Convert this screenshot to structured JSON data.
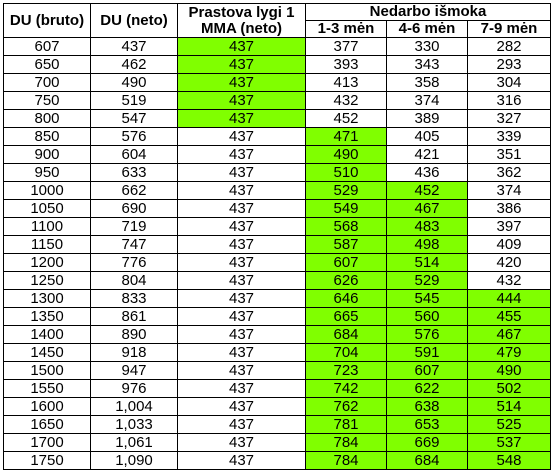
{
  "headers": {
    "du_bruto": "DU (bruto)",
    "du_neto": "DU (neto)",
    "prastova": "Prastova lygi 1 MMA (neto)",
    "nedarbo": "Nedarbo išmoka",
    "m13": "1-3 mėn",
    "m46": "4-6 mėn",
    "m79": "7-9 mėn"
  },
  "highlight_color": "#80ff00",
  "rows": [
    {
      "bruto": "607",
      "neto": "437",
      "prastova": "437",
      "m13": "377",
      "m46": "330",
      "m79": "282",
      "hl": [
        0,
        0,
        1,
        0,
        0,
        0
      ]
    },
    {
      "bruto": "650",
      "neto": "462",
      "prastova": "437",
      "m13": "393",
      "m46": "343",
      "m79": "293",
      "hl": [
        0,
        0,
        1,
        0,
        0,
        0
      ]
    },
    {
      "bruto": "700",
      "neto": "490",
      "prastova": "437",
      "m13": "413",
      "m46": "358",
      "m79": "304",
      "hl": [
        0,
        0,
        1,
        0,
        0,
        0
      ]
    },
    {
      "bruto": "750",
      "neto": "519",
      "prastova": "437",
      "m13": "432",
      "m46": "374",
      "m79": "316",
      "hl": [
        0,
        0,
        1,
        0,
        0,
        0
      ]
    },
    {
      "bruto": "800",
      "neto": "547",
      "prastova": "437",
      "m13": "452",
      "m46": "389",
      "m79": "327",
      "hl": [
        0,
        0,
        1,
        0,
        0,
        0
      ]
    },
    {
      "bruto": "850",
      "neto": "576",
      "prastova": "437",
      "m13": "471",
      "m46": "405",
      "m79": "339",
      "hl": [
        0,
        0,
        0,
        1,
        0,
        0
      ]
    },
    {
      "bruto": "900",
      "neto": "604",
      "prastova": "437",
      "m13": "490",
      "m46": "421",
      "m79": "351",
      "hl": [
        0,
        0,
        0,
        1,
        0,
        0
      ]
    },
    {
      "bruto": "950",
      "neto": "633",
      "prastova": "437",
      "m13": "510",
      "m46": "436",
      "m79": "362",
      "hl": [
        0,
        0,
        0,
        1,
        0,
        0
      ]
    },
    {
      "bruto": "1000",
      "neto": "662",
      "prastova": "437",
      "m13": "529",
      "m46": "452",
      "m79": "374",
      "hl": [
        0,
        0,
        0,
        1,
        1,
        0
      ]
    },
    {
      "bruto": "1050",
      "neto": "690",
      "prastova": "437",
      "m13": "549",
      "m46": "467",
      "m79": "386",
      "hl": [
        0,
        0,
        0,
        1,
        1,
        0
      ]
    },
    {
      "bruto": "1100",
      "neto": "719",
      "prastova": "437",
      "m13": "568",
      "m46": "483",
      "m79": "397",
      "hl": [
        0,
        0,
        0,
        1,
        1,
        0
      ]
    },
    {
      "bruto": "1150",
      "neto": "747",
      "prastova": "437",
      "m13": "587",
      "m46": "498",
      "m79": "409",
      "hl": [
        0,
        0,
        0,
        1,
        1,
        0
      ]
    },
    {
      "bruto": "1200",
      "neto": "776",
      "prastova": "437",
      "m13": "607",
      "m46": "514",
      "m79": "420",
      "hl": [
        0,
        0,
        0,
        1,
        1,
        0
      ]
    },
    {
      "bruto": "1250",
      "neto": "804",
      "prastova": "437",
      "m13": "626",
      "m46": "529",
      "m79": "432",
      "hl": [
        0,
        0,
        0,
        1,
        1,
        0
      ]
    },
    {
      "bruto": "1300",
      "neto": "833",
      "prastova": "437",
      "m13": "646",
      "m46": "545",
      "m79": "444",
      "hl": [
        0,
        0,
        0,
        1,
        1,
        1
      ]
    },
    {
      "bruto": "1350",
      "neto": "861",
      "prastova": "437",
      "m13": "665",
      "m46": "560",
      "m79": "455",
      "hl": [
        0,
        0,
        0,
        1,
        1,
        1
      ]
    },
    {
      "bruto": "1400",
      "neto": "890",
      "prastova": "437",
      "m13": "684",
      "m46": "576",
      "m79": "467",
      "hl": [
        0,
        0,
        0,
        1,
        1,
        1
      ]
    },
    {
      "bruto": "1450",
      "neto": "918",
      "prastova": "437",
      "m13": "704",
      "m46": "591",
      "m79": "479",
      "hl": [
        0,
        0,
        0,
        1,
        1,
        1
      ]
    },
    {
      "bruto": "1500",
      "neto": "947",
      "prastova": "437",
      "m13": "723",
      "m46": "607",
      "m79": "490",
      "hl": [
        0,
        0,
        0,
        1,
        1,
        1
      ]
    },
    {
      "bruto": "1550",
      "neto": "976",
      "prastova": "437",
      "m13": "742",
      "m46": "622",
      "m79": "502",
      "hl": [
        0,
        0,
        0,
        1,
        1,
        1
      ]
    },
    {
      "bruto": "1600",
      "neto": "1,004",
      "prastova": "437",
      "m13": "762",
      "m46": "638",
      "m79": "514",
      "hl": [
        0,
        0,
        0,
        1,
        1,
        1
      ]
    },
    {
      "bruto": "1650",
      "neto": "1,033",
      "prastova": "437",
      "m13": "781",
      "m46": "653",
      "m79": "525",
      "hl": [
        0,
        0,
        0,
        1,
        1,
        1
      ]
    },
    {
      "bruto": "1700",
      "neto": "1,061",
      "prastova": "437",
      "m13": "784",
      "m46": "669",
      "m79": "537",
      "hl": [
        0,
        0,
        0,
        1,
        1,
        1
      ]
    },
    {
      "bruto": "1750",
      "neto": "1,090",
      "prastova": "437",
      "m13": "784",
      "m46": "684",
      "m79": "548",
      "hl": [
        0,
        0,
        0,
        1,
        1,
        1
      ]
    }
  ]
}
